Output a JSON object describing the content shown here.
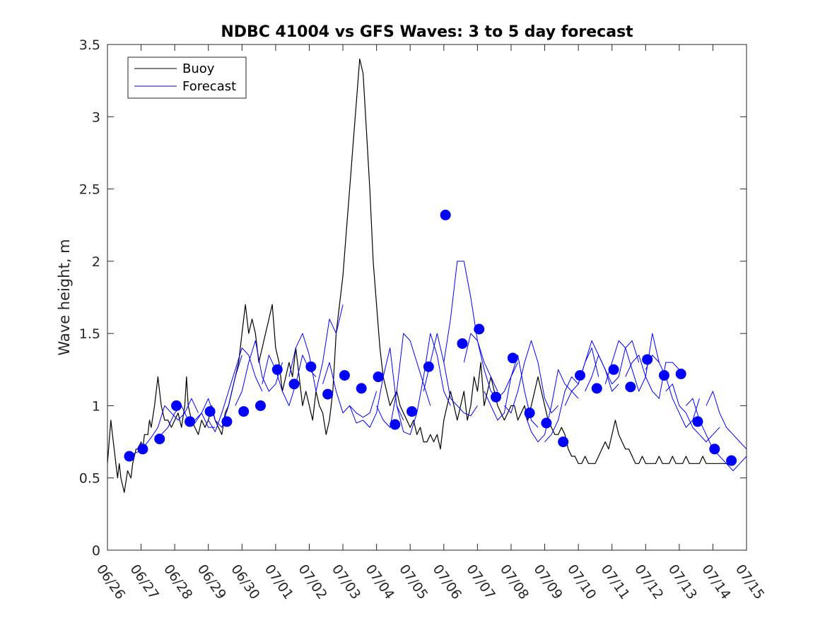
{
  "chart_data": {
    "type": "line",
    "title": "NDBC 41004 vs GFS Waves: 3 to 5 day forecast",
    "xlabel": "",
    "ylabel": "Wave height, m",
    "ylim": [
      0,
      3.5
    ],
    "yticks": [
      "0",
      "0.5",
      "1",
      "1.5",
      "2",
      "2.5",
      "3",
      "3.5"
    ],
    "xlim": [
      "06/26",
      "07/15"
    ],
    "xticks": [
      "06/26",
      "06/27",
      "06/28",
      "06/29",
      "06/30",
      "07/01",
      "07/02",
      "07/03",
      "07/04",
      "07/05",
      "07/06",
      "07/07",
      "07/08",
      "07/09",
      "07/10",
      "07/11",
      "07/12",
      "07/13",
      "07/14",
      "07/15"
    ],
    "grid": false,
    "legend": {
      "placement": "top-left",
      "entries": [
        "Buoy",
        "Forecast"
      ]
    },
    "colors": {
      "buoy": "#000000",
      "forecast": "#0000ff",
      "markers": "#0000ff"
    },
    "series": [
      {
        "name": "Buoy",
        "x": [
          0,
          0.1,
          0.15,
          0.2,
          0.25,
          0.3,
          0.35,
          0.4,
          0.5,
          0.6,
          0.7,
          0.75,
          0.8,
          0.85,
          0.9,
          1.0,
          1.05,
          1.1,
          1.2,
          1.25,
          1.3,
          1.4,
          1.5,
          1.55,
          1.6,
          1.7,
          1.8,
          1.9,
          2.0,
          2.1,
          2.2,
          2.3,
          2.35,
          2.4,
          2.5,
          2.6,
          2.7,
          2.8,
          2.9,
          3.0,
          3.1,
          3.2,
          3.3,
          3.4,
          3.5,
          3.6,
          3.7,
          3.8,
          3.9,
          4.0,
          4.1,
          4.2,
          4.3,
          4.4,
          4.5,
          4.6,
          4.7,
          4.8,
          4.9,
          5.0,
          5.1,
          5.2,
          5.3,
          5.4,
          5.5,
          5.6,
          5.7,
          5.8,
          5.9,
          6.0,
          6.1,
          6.2,
          6.3,
          6.4,
          6.5,
          6.6,
          6.7,
          6.8,
          6.9,
          7.0,
          7.1,
          7.2,
          7.3,
          7.4,
          7.5,
          7.6,
          7.7,
          7.8,
          7.9,
          8.0,
          8.1,
          8.2,
          8.3,
          8.4,
          8.5,
          8.6,
          8.7,
          8.8,
          8.9,
          9.0,
          9.1,
          9.2,
          9.3,
          9.4,
          9.5,
          9.6,
          9.7,
          9.8,
          9.9,
          10.0,
          10.1,
          10.2,
          10.3,
          10.4,
          10.5,
          10.6,
          10.7,
          10.8,
          10.9,
          11.0,
          11.1,
          11.2,
          11.3,
          11.4,
          11.5,
          11.6,
          11.7,
          11.8,
          11.9,
          12.0,
          12.1,
          12.2,
          12.3,
          12.4,
          12.5,
          12.6,
          12.7,
          12.8,
          12.9,
          13.0,
          13.1,
          13.2,
          13.3,
          13.4,
          13.5,
          13.6,
          13.7,
          13.8,
          13.9,
          14.0,
          14.1,
          14.2,
          14.3,
          14.4,
          14.5,
          14.6,
          14.7,
          14.8,
          14.9,
          15.0,
          15.1,
          15.2,
          15.3,
          15.4,
          15.5,
          15.6,
          15.7,
          15.8,
          15.9,
          16.0,
          16.1,
          16.2,
          16.3,
          16.4,
          16.5,
          16.6,
          16.7,
          16.8,
          16.9,
          17.0,
          17.1,
          17.2,
          17.3,
          17.4,
          17.5,
          17.6,
          17.7,
          17.8,
          17.9,
          18.0,
          18.1,
          18.2,
          18.3,
          18.4,
          18.5,
          18.6
        ],
        "y": [
          0.6,
          0.9,
          0.8,
          0.7,
          0.6,
          0.5,
          0.6,
          0.5,
          0.4,
          0.55,
          0.5,
          0.6,
          0.65,
          0.7,
          0.7,
          0.75,
          0.7,
          0.8,
          0.8,
          0.9,
          0.85,
          1.0,
          1.2,
          1.1,
          1.0,
          0.9,
          0.9,
          0.85,
          0.9,
          0.95,
          0.85,
          1.0,
          1.2,
          1.0,
          0.9,
          0.85,
          0.8,
          0.9,
          0.85,
          0.9,
          1.0,
          0.9,
          0.85,
          0.8,
          0.95,
          1.0,
          1.1,
          1.2,
          1.3,
          1.5,
          1.7,
          1.5,
          1.6,
          1.5,
          1.3,
          1.4,
          1.5,
          1.6,
          1.7,
          1.4,
          1.3,
          1.1,
          1.2,
          1.3,
          1.2,
          1.4,
          1.2,
          1.0,
          1.1,
          1.0,
          0.9,
          1.1,
          1.0,
          0.95,
          0.8,
          0.9,
          1.1,
          1.5,
          1.7,
          1.9,
          2.2,
          2.5,
          2.8,
          3.1,
          3.4,
          3.3,
          2.9,
          2.5,
          2.0,
          1.7,
          1.4,
          1.2,
          1.1,
          1.0,
          1.05,
          1.1,
          1.0,
          0.95,
          0.9,
          0.85,
          0.9,
          0.8,
          0.85,
          0.75,
          0.75,
          0.8,
          0.75,
          0.8,
          0.7,
          0.9,
          1.0,
          1.1,
          1.0,
          0.9,
          1.0,
          1.1,
          0.9,
          1.0,
          1.2,
          1.1,
          1.3,
          1.0,
          1.1,
          1.2,
          1.1,
          1.0,
          0.95,
          0.9,
          0.95,
          1.0,
          1.0,
          0.9,
          0.95,
          1.0,
          0.9,
          1.0,
          1.1,
          1.2,
          1.1,
          1.0,
          0.9,
          0.85,
          0.8,
          0.8,
          0.85,
          0.8,
          0.7,
          0.65,
          0.65,
          0.6,
          0.6,
          0.65,
          0.6,
          0.6,
          0.6,
          0.65,
          0.7,
          0.75,
          0.7,
          0.8,
          0.9,
          0.8,
          0.75,
          0.7,
          0.7,
          0.65,
          0.6,
          0.6,
          0.65,
          0.6,
          0.6,
          0.6,
          0.6,
          0.65,
          0.6,
          0.6,
          0.6,
          0.65,
          0.6,
          0.6,
          0.6,
          0.65,
          0.6,
          0.6,
          0.6,
          0.6,
          0.65,
          0.6,
          0.6,
          0.6,
          0.6,
          0.6,
          0.6,
          0.6,
          0.6,
          0.6
        ]
      },
      {
        "name": "Forecast",
        "segments": [
          {
            "x": [
              0.6,
              0.9,
              1.1,
              1.3,
              1.5,
              1.7,
              1.9,
              2.1,
              2.3,
              2.5,
              2.7
            ],
            "y": [
              0.65,
              0.68,
              0.72,
              0.78,
              0.85,
              1.0,
              0.95,
              0.9,
              0.95,
              1.05,
              0.95
            ]
          },
          {
            "x": [
              1.6,
              1.8,
              2.0,
              2.2,
              2.4,
              2.6,
              2.8,
              3.0,
              3.2
            ],
            "y": [
              0.8,
              0.85,
              0.95,
              1.0,
              0.9,
              0.88,
              0.95,
              0.85,
              0.85
            ]
          },
          {
            "x": [
              2.6,
              2.8,
              3.0,
              3.2,
              3.4,
              3.6,
              3.8,
              4.0
            ],
            "y": [
              0.9,
              0.95,
              1.05,
              0.9,
              0.85,
              1.0,
              1.2,
              1.35
            ]
          },
          {
            "x": [
              3.0,
              3.2,
              3.4,
              3.6,
              3.8,
              4.0,
              4.2,
              4.4,
              4.6
            ],
            "y": [
              0.9,
              0.82,
              0.95,
              1.1,
              1.25,
              1.4,
              1.35,
              1.2,
              1.1
            ]
          },
          {
            "x": [
              3.8,
              4.0,
              4.2,
              4.4,
              4.6,
              4.8,
              5.0,
              5.2
            ],
            "y": [
              1.0,
              1.1,
              1.3,
              1.45,
              1.2,
              1.1,
              1.15,
              1.3
            ]
          },
          {
            "x": [
              4.6,
              4.8,
              5.0,
              5.2,
              5.4,
              5.6,
              5.8,
              6.0,
              6.2
            ],
            "y": [
              1.15,
              1.35,
              1.25,
              1.1,
              1.0,
              1.15,
              1.35,
              1.25,
              1.2
            ]
          },
          {
            "x": [
              5.4,
              5.6,
              5.8,
              6.0,
              6.2,
              6.4,
              6.6,
              6.8,
              7.0
            ],
            "y": [
              1.2,
              1.4,
              1.5,
              1.35,
              1.1,
              1.3,
              1.6,
              1.5,
              1.7
            ]
          },
          {
            "x": [
              6.4,
              6.6,
              6.8,
              7.0,
              7.2,
              7.4,
              7.6,
              7.8,
              8.0
            ],
            "y": [
              1.15,
              1.3,
              1.1,
              0.95,
              1.0,
              0.95,
              0.92,
              0.95,
              1.1
            ]
          },
          {
            "x": [
              7.2,
              7.4,
              7.6,
              7.8,
              8.0,
              8.2,
              8.4,
              8.6,
              8.8
            ],
            "y": [
              1.0,
              0.88,
              0.9,
              0.85,
              0.95,
              1.2,
              1.4,
              1.0,
              0.9
            ]
          },
          {
            "x": [
              8.0,
              8.2,
              8.4,
              8.6,
              8.8,
              9.0,
              9.2,
              9.4,
              9.6
            ],
            "y": [
              1.0,
              0.9,
              0.85,
              1.1,
              1.5,
              1.45,
              1.3,
              1.15,
              1.0
            ]
          },
          {
            "x": [
              8.6,
              8.8,
              9.0,
              9.2,
              9.4,
              9.6,
              9.8,
              10.0,
              10.2
            ],
            "y": [
              1.0,
              0.82,
              0.8,
              0.95,
              1.2,
              1.5,
              1.35,
              1.1,
              1.0
            ]
          },
          {
            "x": [
              9.4,
              9.6,
              9.8,
              10.0,
              10.2,
              10.4,
              10.6,
              10.8,
              11.0
            ],
            "y": [
              1.1,
              1.3,
              1.5,
              1.3,
              1.05,
              1.0,
              0.95,
              0.93,
              1.0
            ]
          },
          {
            "x": [
              10.0,
              10.2,
              10.4,
              10.6,
              10.8,
              11.0,
              11.2,
              11.4,
              11.6
            ],
            "y": [
              1.3,
              1.6,
              2.0,
              2.0,
              1.75,
              1.45,
              1.3,
              1.2,
              1.1
            ]
          },
          {
            "x": [
              10.6,
              10.8,
              11.0,
              11.2,
              11.4,
              11.6,
              11.8,
              12.0,
              12.2
            ],
            "y": [
              1.3,
              1.5,
              1.45,
              1.25,
              1.1,
              1.05,
              1.1,
              1.2,
              1.3
            ]
          },
          {
            "x": [
              11.2,
              11.4,
              11.6,
              11.8,
              12.0,
              12.2,
              12.4,
              12.6,
              12.8
            ],
            "y": [
              1.1,
              1.0,
              0.9,
              0.95,
              1.2,
              1.35,
              1.1,
              0.9,
              0.85
            ]
          },
          {
            "x": [
              11.8,
              12.0,
              12.2,
              12.4,
              12.6,
              12.8,
              13.0,
              13.2,
              13.4
            ],
            "y": [
              1.0,
              0.95,
              1.1,
              1.3,
              1.45,
              1.3,
              1.05,
              0.95,
              1.0
            ]
          },
          {
            "x": [
              12.4,
              12.6,
              12.8,
              13.0,
              13.2,
              13.4,
              13.6,
              13.8,
              14.0
            ],
            "y": [
              0.95,
              0.82,
              0.75,
              0.8,
              1.0,
              1.25,
              1.15,
              1.1,
              1.05
            ]
          },
          {
            "x": [
              13.0,
              13.2,
              13.4,
              13.6,
              13.8,
              14.0,
              14.2,
              14.4,
              14.6
            ],
            "y": [
              0.75,
              0.8,
              0.9,
              1.1,
              1.2,
              1.15,
              1.3,
              1.4,
              1.2
            ]
          },
          {
            "x": [
              13.6,
              13.8,
              14.0,
              14.2,
              14.4,
              14.6,
              14.8,
              15.0,
              15.2
            ],
            "y": [
              1.0,
              1.1,
              1.15,
              1.3,
              1.45,
              1.35,
              1.25,
              1.1,
              1.15
            ]
          },
          {
            "x": [
              14.2,
              14.4,
              14.6,
              14.8,
              15.0,
              15.2,
              15.4,
              15.6,
              15.8
            ],
            "y": [
              1.1,
              1.2,
              1.35,
              1.25,
              1.15,
              1.2,
              1.4,
              1.45,
              1.3
            ]
          },
          {
            "x": [
              14.8,
              15.0,
              15.2,
              15.4,
              15.6,
              15.8,
              16.0,
              16.2,
              16.4
            ],
            "y": [
              1.15,
              1.3,
              1.45,
              1.4,
              1.25,
              1.1,
              1.2,
              1.5,
              1.3
            ]
          },
          {
            "x": [
              15.4,
              15.6,
              15.8,
              16.0,
              16.2,
              16.4,
              16.6,
              16.8,
              17.0
            ],
            "y": [
              1.2,
              1.3,
              1.35,
              1.2,
              1.1,
              1.05,
              1.3,
              1.3,
              1.25
            ]
          },
          {
            "x": [
              16.0,
              16.2,
              16.4,
              16.6,
              16.8,
              17.0,
              17.2,
              17.4,
              17.6
            ],
            "y": [
              1.25,
              1.35,
              1.3,
              1.2,
              1.05,
              0.95,
              0.85,
              0.9,
              1.05
            ]
          },
          {
            "x": [
              16.6,
              16.8,
              17.0,
              17.2,
              17.4,
              17.6,
              17.8,
              18.0,
              18.2
            ],
            "y": [
              1.1,
              1.15,
              1.0,
              0.95,
              0.85,
              0.8,
              0.75,
              0.8,
              0.85
            ]
          },
          {
            "x": [
              17.2,
              17.4,
              17.6,
              17.8,
              18.0,
              18.2,
              18.4,
              18.6,
              18.8,
              19.0
            ],
            "y": [
              1.0,
              1.05,
              0.9,
              0.8,
              0.7,
              0.65,
              0.6,
              0.55,
              0.6,
              0.65
            ]
          },
          {
            "x": [
              17.8,
              18.0,
              18.2,
              18.4,
              18.6,
              18.8,
              19.0
            ],
            "y": [
              1.0,
              1.1,
              0.95,
              0.85,
              0.8,
              0.75,
              0.7
            ]
          }
        ],
        "markers": {
          "x": [
            0.65,
            1.05,
            1.55,
            2.05,
            2.45,
            3.05,
            3.55,
            4.05,
            4.55,
            5.05,
            5.55,
            6.05,
            6.55,
            7.05,
            7.55,
            8.05,
            8.55,
            9.05,
            9.55,
            10.05,
            10.55,
            11.05,
            11.55,
            12.05,
            12.55,
            13.05,
            13.55,
            14.05,
            14.55,
            15.05,
            15.55,
            16.05,
            16.55,
            17.05,
            17.55,
            18.05,
            18.55
          ],
          "y": [
            0.65,
            0.7,
            0.77,
            1.0,
            0.89,
            0.96,
            0.89,
            0.96,
            1.0,
            1.25,
            1.15,
            1.27,
            1.08,
            1.21,
            1.12,
            1.2,
            0.87,
            0.96,
            1.27,
            2.32,
            1.43,
            1.53,
            1.06,
            1.33,
            0.95,
            0.88,
            0.75,
            1.21,
            1.12,
            1.25,
            1.13,
            1.32,
            1.21,
            1.22,
            0.89,
            0.7,
            0.62
          ]
        }
      }
    ]
  }
}
